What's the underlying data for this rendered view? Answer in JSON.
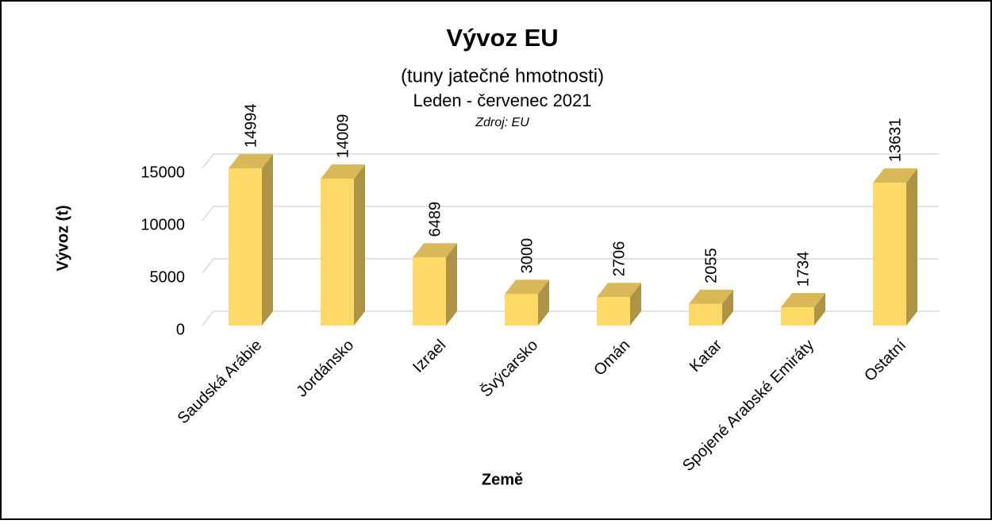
{
  "chart_data": {
    "type": "bar3d",
    "title": "Vývoz EU",
    "subtitle": "(tuny jatečné hmotnosti)",
    "period": "Leden - červenec 2021",
    "source": "Zdroj: EU",
    "x_label": "Země",
    "y_label": "Vývoz (t)",
    "categories": [
      "Saudská Arábie",
      "Jordánsko",
      "Izrael",
      "Švýcarsko",
      "Omán",
      "Katar",
      "Spojené Arabské Emiráty",
      "Ostatní"
    ],
    "values": [
      14994,
      14009,
      6489,
      3000,
      2706,
      2055,
      1734,
      13631
    ],
    "color": "#FFD966",
    "ylim": [
      0,
      15000
    ],
    "yticks": [
      0,
      5000,
      10000,
      15000
    ],
    "grid": true
  }
}
